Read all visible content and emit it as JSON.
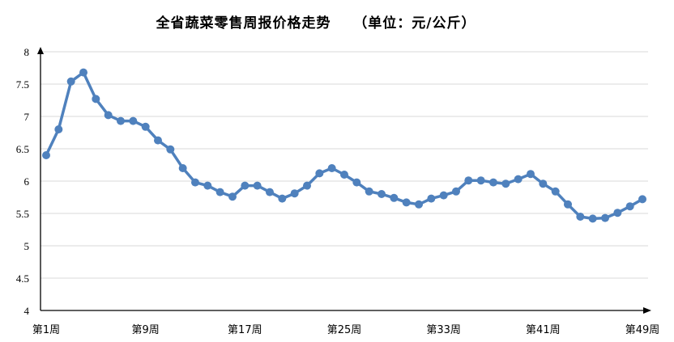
{
  "chart_data": {
    "type": "line",
    "title": "全省蔬菜零售周报价格走势",
    "unit_note": "（单位：元/公斤）",
    "ylim": [
      4,
      8
    ],
    "yticks": [
      "4",
      "4.5",
      "5",
      "5.5",
      "6",
      "6.5",
      "7",
      "7.5",
      "8"
    ],
    "xtick_labels": [
      {
        "week": 1,
        "label": "第1周"
      },
      {
        "week": 9,
        "label": "第9周"
      },
      {
        "week": 17,
        "label": "第17周"
      },
      {
        "week": 25,
        "label": "第25周"
      },
      {
        "week": 33,
        "label": "第33周"
      },
      {
        "week": 41,
        "label": "第41周"
      },
      {
        "week": 49,
        "label": "第49周"
      }
    ],
    "grid": true,
    "legend": "none",
    "colors": {
      "line": "#4f81bd",
      "grid": "#d9d9d9",
      "axis": "#000000"
    },
    "x": [
      1,
      2,
      3,
      4,
      5,
      6,
      7,
      8,
      9,
      10,
      11,
      12,
      13,
      14,
      15,
      16,
      17,
      18,
      19,
      20,
      21,
      22,
      23,
      24,
      25,
      26,
      27,
      28,
      29,
      30,
      31,
      32,
      33,
      34,
      35,
      36,
      37,
      38,
      39,
      40,
      41,
      42,
      43,
      44,
      45,
      46,
      47,
      48,
      49
    ],
    "values": [
      6.4,
      6.8,
      7.54,
      7.68,
      7.27,
      7.02,
      6.93,
      6.93,
      6.84,
      6.63,
      6.49,
      6.2,
      5.98,
      5.93,
      5.83,
      5.76,
      5.93,
      5.93,
      5.83,
      5.73,
      5.81,
      5.93,
      6.12,
      6.2,
      6.1,
      5.98,
      5.84,
      5.8,
      5.74,
      5.67,
      5.64,
      5.73,
      5.78,
      5.84,
      6.01,
      6.01,
      5.98,
      5.96,
      6.03,
      6.11,
      5.96,
      5.84,
      5.64,
      5.45,
      5.42,
      5.43,
      5.51,
      5.61,
      5.72
    ]
  }
}
